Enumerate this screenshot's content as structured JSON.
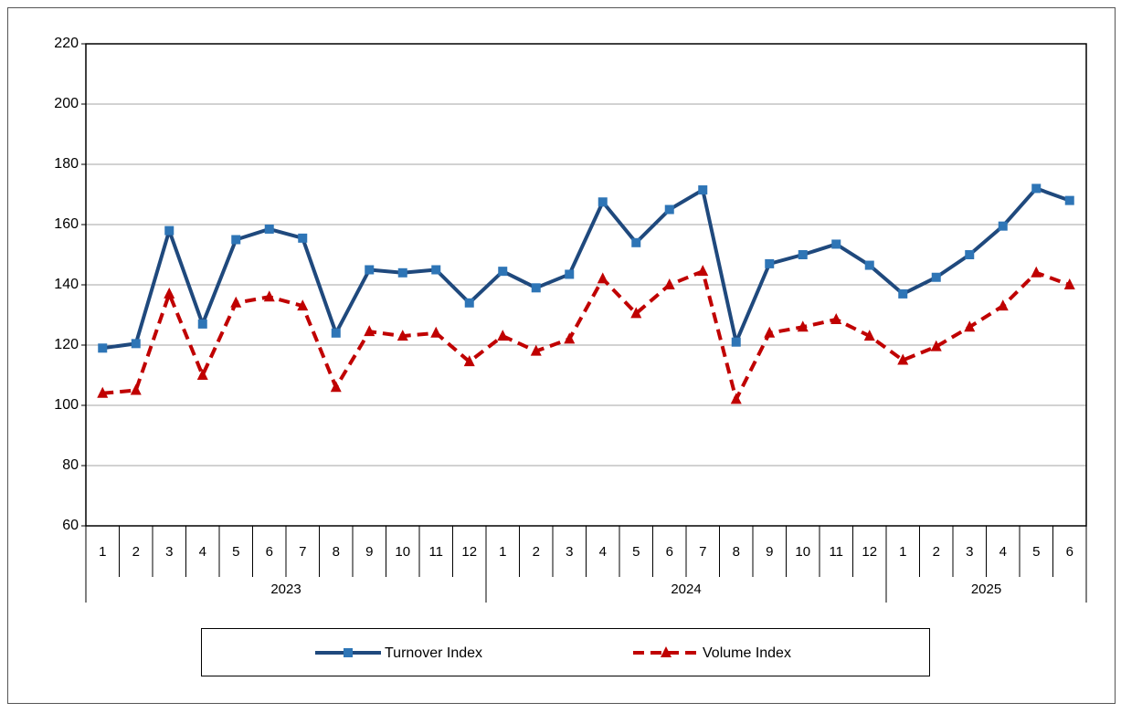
{
  "chart_data": {
    "type": "line",
    "categories": [
      "1",
      "2",
      "3",
      "4",
      "5",
      "6",
      "7",
      "8",
      "9",
      "10",
      "11",
      "12",
      "1",
      "2",
      "3",
      "4",
      "5",
      "6",
      "7",
      "8",
      "9",
      "10",
      "11",
      "12",
      "1",
      "2",
      "3",
      "4",
      "5",
      "6"
    ],
    "category_groups": [
      "2023",
      "2024",
      "2025"
    ],
    "series": [
      {
        "name": "Turnover Index",
        "color": "#1f497d",
        "marker_color": "#2e75b6",
        "marker": "square",
        "dash": false,
        "values": [
          119,
          120.5,
          158,
          127,
          155,
          158.5,
          155.5,
          124,
          145,
          144,
          145,
          134,
          144.5,
          139,
          143.5,
          167.5,
          154,
          165,
          171.5,
          121,
          147,
          150,
          153.5,
          146.5,
          137,
          142.5,
          150,
          159.5,
          172,
          168
        ]
      },
      {
        "name": "Volume Index",
        "color": "#c00000",
        "marker_color": "#c00000",
        "marker": "triangle",
        "dash": true,
        "values": [
          104,
          105,
          137,
          110,
          134,
          136,
          133,
          106,
          124.5,
          123,
          124,
          114.5,
          123,
          118,
          122,
          142,
          130.5,
          140,
          144.5,
          102,
          124,
          126,
          128.5,
          123,
          115,
          119.5,
          126,
          133,
          144,
          140
        ]
      }
    ],
    "ylim": [
      60,
      220
    ],
    "yticks": [
      60,
      80,
      100,
      120,
      140,
      160,
      180,
      200,
      220
    ],
    "grid": true,
    "legend": "bottom"
  }
}
